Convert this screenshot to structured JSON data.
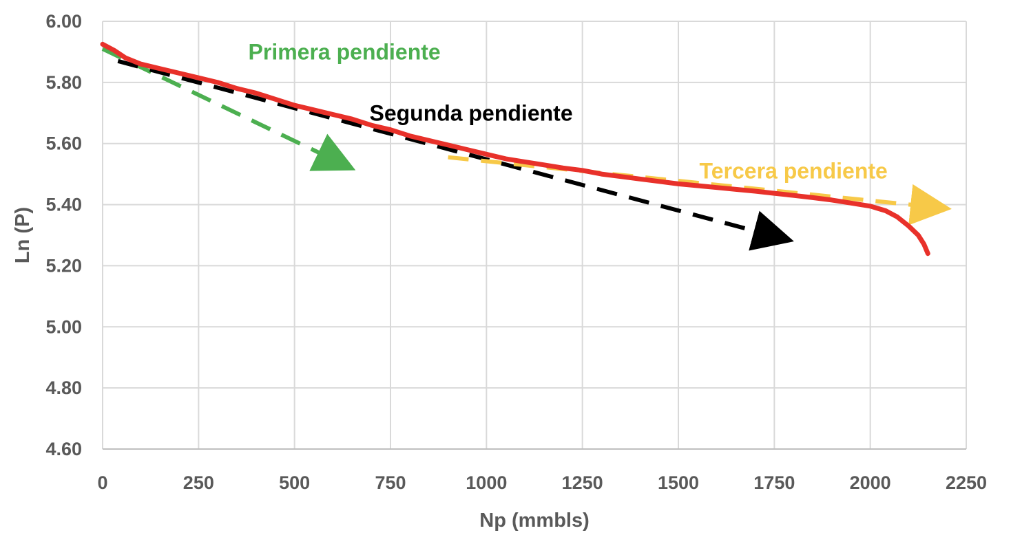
{
  "chart_data": {
    "type": "line",
    "title": "",
    "xlabel": "Np (mmbls)",
    "ylabel": "Ln (P)",
    "xlim": [
      0,
      2250
    ],
    "ylim": [
      4.6,
      6.0
    ],
    "x_ticks": [
      "0",
      "250",
      "500",
      "750",
      "1000",
      "1250",
      "1500",
      "1750",
      "2000",
      "2250"
    ],
    "y_ticks": [
      "6.00",
      "5.80",
      "5.60",
      "5.40",
      "5.20",
      "5.00",
      "4.80",
      "4.60"
    ],
    "grid": true,
    "legend": "none",
    "series": [
      {
        "color": "#e8312a",
        "style": "solid",
        "points": [
          [
            0,
            5.925
          ],
          [
            30,
            5.905
          ],
          [
            60,
            5.88
          ],
          [
            100,
            5.86
          ],
          [
            150,
            5.845
          ],
          [
            200,
            5.83
          ],
          [
            250,
            5.815
          ],
          [
            300,
            5.8
          ],
          [
            350,
            5.78
          ],
          [
            400,
            5.765
          ],
          [
            450,
            5.745
          ],
          [
            500,
            5.725
          ],
          [
            550,
            5.71
          ],
          [
            600,
            5.695
          ],
          [
            650,
            5.68
          ],
          [
            700,
            5.66
          ],
          [
            750,
            5.645
          ],
          [
            800,
            5.625
          ],
          [
            850,
            5.61
          ],
          [
            900,
            5.595
          ],
          [
            950,
            5.58
          ],
          [
            1000,
            5.565
          ],
          [
            1050,
            5.55
          ],
          [
            1100,
            5.54
          ],
          [
            1150,
            5.53
          ],
          [
            1200,
            5.52
          ],
          [
            1250,
            5.512
          ],
          [
            1300,
            5.5
          ],
          [
            1350,
            5.492
          ],
          [
            1400,
            5.484
          ],
          [
            1450,
            5.476
          ],
          [
            1500,
            5.468
          ],
          [
            1550,
            5.462
          ],
          [
            1600,
            5.456
          ],
          [
            1650,
            5.45
          ],
          [
            1700,
            5.444
          ],
          [
            1750,
            5.437
          ],
          [
            1800,
            5.43
          ],
          [
            1850,
            5.423
          ],
          [
            1900,
            5.415
          ],
          [
            1950,
            5.405
          ],
          [
            2000,
            5.395
          ],
          [
            2040,
            5.38
          ],
          [
            2070,
            5.36
          ],
          [
            2100,
            5.33
          ],
          [
            2125,
            5.3
          ],
          [
            2140,
            5.27
          ],
          [
            2150,
            5.24
          ]
        ]
      },
      {
        "name": "Primera pendiente",
        "color": "#4caf50",
        "style": "dashed-arrow",
        "points": [
          [
            0,
            5.91
          ],
          [
            630,
            5.53
          ]
        ]
      },
      {
        "name": "Segunda pendiente",
        "color": "#000000",
        "style": "dashed-arrow",
        "points": [
          [
            40,
            5.87
          ],
          [
            1770,
            5.29
          ]
        ]
      },
      {
        "name": "Tercera pendiente",
        "color": "#f7c948",
        "style": "dashed-arrow",
        "points": [
          [
            900,
            5.555
          ],
          [
            2180,
            5.39
          ]
        ]
      }
    ],
    "annotations": [
      {
        "text": "Primera pendiente",
        "color": "#4caf50",
        "x": 630,
        "y": 5.9,
        "anchor": "middle"
      },
      {
        "text": "Segunda pendiente",
        "color": "#000000",
        "x": 960,
        "y": 5.7,
        "anchor": "middle"
      },
      {
        "text": "Tercera pendiente",
        "color": "#f7c948",
        "x": 1800,
        "y": 5.51,
        "anchor": "middle"
      }
    ]
  }
}
